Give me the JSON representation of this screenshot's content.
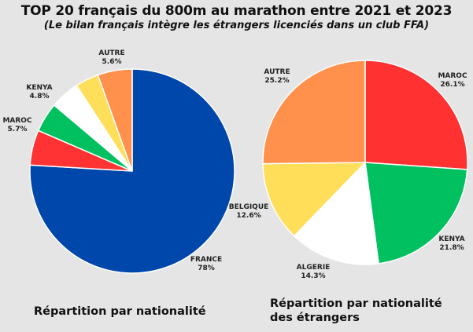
{
  "header": {
    "title": "TOP 20 français du 800m au marathon entre 2021 et 2023",
    "subtitle": "(Le bilan français intègre les étrangers licenciés dans un club FFA)"
  },
  "captions": {
    "left": "Répartition par nationalité",
    "right": "Répartition par nationalité des étrangers"
  },
  "chart_data": [
    {
      "type": "pie",
      "title": "Répartition par nationalité",
      "start": "top, clockwise",
      "slices": [
        {
          "label": "FRANCE",
          "value": 78,
          "text": "78%",
          "color": "#0047ab"
        },
        {
          "label": "MAROC",
          "value": 5.7,
          "text": "5.7%",
          "color": "#ff3333"
        },
        {
          "label": "",
          "value": 4.8,
          "text": "",
          "color": "#00c060"
        },
        {
          "label": "KENYA",
          "value": 4.8,
          "text": "4.8%",
          "color": "#ffffff"
        },
        {
          "label": "",
          "value": 3.8,
          "text": "",
          "color": "#ffde59"
        },
        {
          "label": "AUTRE",
          "value": 5.6,
          "text": "5.6%",
          "color": "#ff914d"
        }
      ]
    },
    {
      "type": "pie",
      "title": "Répartition par nationalité des étrangers",
      "start": "top, clockwise",
      "slices": [
        {
          "label": "MAROC",
          "value": 26.1,
          "text": "26.1%",
          "color": "#ff3131"
        },
        {
          "label": "KENYA",
          "value": 21.8,
          "text": "21.8%",
          "color": "#00c060"
        },
        {
          "label": "ALGERIE",
          "value": 14.3,
          "text": "14.3%",
          "color": "#ffffff"
        },
        {
          "label": "BELGIQUE",
          "value": 12.6,
          "text": "12.6%",
          "color": "#ffde59"
        },
        {
          "label": "AUTRE",
          "value": 25.2,
          "text": "25.2%",
          "color": "#ff914d"
        }
      ]
    }
  ]
}
